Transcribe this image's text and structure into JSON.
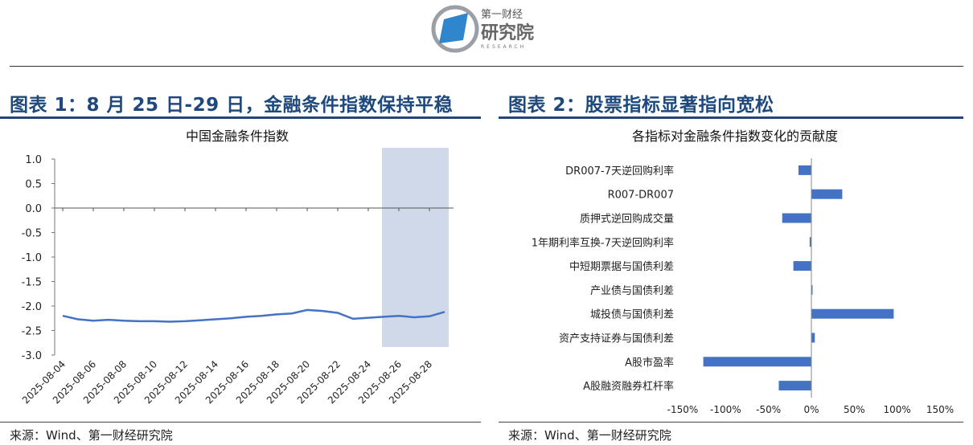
{
  "logo": {
    "line1": "第一财经",
    "line2": "研究院",
    "line3": "RESEARCH",
    "colors": {
      "mark": "#2f86cc",
      "ring": "#9aa0a6"
    }
  },
  "left": {
    "title": "图表 1：8 月 25 日-29 日，金融条件指数保持平稳",
    "source": "来源：Wind、第一财经研究院"
  },
  "right": {
    "title": "图表 2：股票指标显著指向宽松",
    "source": "来源：Wind、第一财经研究院"
  },
  "colors": {
    "title": "#1f497d",
    "series": "#4472c4",
    "highlight": "#cfd9ea"
  },
  "chart_data": [
    {
      "type": "line",
      "title": "中国金融条件指数",
      "xlabel": "",
      "ylabel": "",
      "x": [
        "2025-08-04",
        "2025-08-05",
        "2025-08-06",
        "2025-08-07",
        "2025-08-08",
        "2025-08-09",
        "2025-08-10",
        "2025-08-11",
        "2025-08-12",
        "2025-08-13",
        "2025-08-14",
        "2025-08-15",
        "2025-08-16",
        "2025-08-17",
        "2025-08-18",
        "2025-08-19",
        "2025-08-20",
        "2025-08-21",
        "2025-08-22",
        "2025-08-23",
        "2025-08-24",
        "2025-08-25",
        "2025-08-26",
        "2025-08-27",
        "2025-08-28",
        "2025-08-29"
      ],
      "x_tick_labels": [
        "2025-08-04",
        "2025-08-06",
        "2025-08-08",
        "2025-08-10",
        "2025-08-12",
        "2025-08-14",
        "2025-08-16",
        "2025-08-18",
        "2025-08-20",
        "2025-08-22",
        "2025-08-24",
        "2025-08-26",
        "2025-08-28"
      ],
      "series": [
        {
          "values": [
            -2.2,
            -2.27,
            -2.3,
            -2.28,
            -2.3,
            -2.31,
            -2.31,
            -2.32,
            -2.31,
            -2.29,
            -2.27,
            -2.25,
            -2.22,
            -2.2,
            -2.17,
            -2.15,
            -2.08,
            -2.1,
            -2.14,
            -2.26,
            -2.24,
            -2.22,
            -2.2,
            -2.23,
            -2.21,
            -2.12
          ]
        }
      ],
      "ylim": [
        -3.0,
        1.0
      ],
      "y_tick_labels": [
        "1.0",
        "0.5",
        "0.0",
        "-0.5",
        "-1.0",
        "-1.5",
        "-2.0",
        "-2.5",
        "-3.0"
      ],
      "highlight_range": [
        "2025-08-25",
        "2025-08-29"
      ],
      "grid": false
    },
    {
      "type": "bar",
      "orientation": "horizontal",
      "title": "各指标对金融条件指数变化的贡献度",
      "categories": [
        "DR007-7天逆回购利率",
        "R007-DR007",
        "质押式逆回购成交量",
        "1年期利率互换-7天逆回购利率",
        "中短期票据与国债利差",
        "产业债与国债利差",
        "城投债与国债利差",
        "资产支持证券与国债利差",
        "A股市盈率",
        "A股融资融券杠杆率"
      ],
      "values": [
        -15,
        36,
        -34,
        -2,
        -21,
        0.5,
        96,
        4,
        -126,
        -38
      ],
      "unit": "%",
      "xlim": [
        -150,
        150
      ],
      "x_tick_labels": [
        "-150%",
        "-100%",
        "-50%",
        "0%",
        "50%",
        "100%",
        "150%"
      ],
      "grid": false
    }
  ]
}
